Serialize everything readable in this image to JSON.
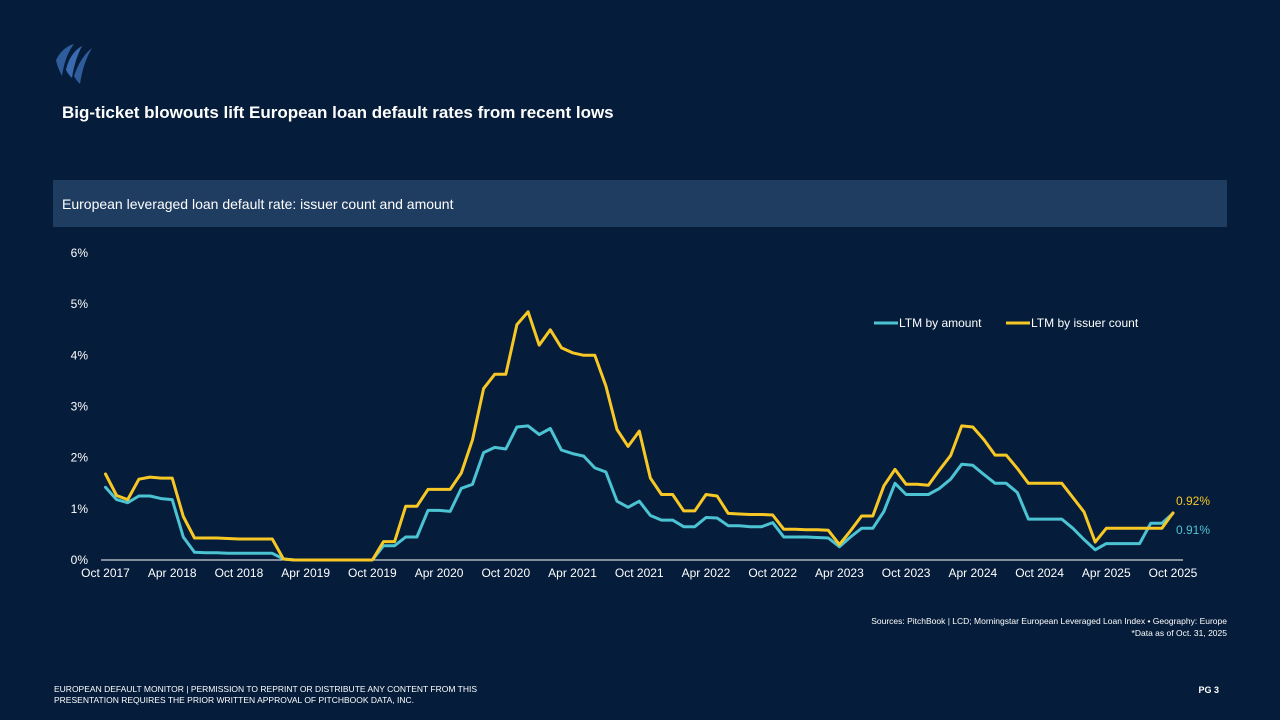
{
  "page": {
    "title": "Big-ticket blowouts lift European loan default rates from recent lows",
    "footer_line1": "EUROPEAN DEFAULT MONITOR | PERMISSION TO REPRINT OR DISTRIBUTE ANY CONTENT  FROM THIS",
    "footer_line2": "PRESENTATION REQUIRES THE PRIOR WRITTEN APPROVAL OF PITCHBOOK DATA, INC.",
    "page_number": "PG 3",
    "source_line1": "Sources: PitchBook | LCD; Morningstar European Leveraged Loan Index • Geography: Europe",
    "source_line2": "*Data as of  Oct. 31, 2025"
  },
  "colors": {
    "background": "#051c3a",
    "subtitle_bar": "#1f3d61",
    "amount": "#4cc3d3",
    "count": "#f7c825",
    "axis": "#ffffff"
  },
  "chart_data": {
    "type": "line",
    "title": "European leveraged loan default rate: issuer count and amount",
    "x_tick_labels": [
      "Oct 2017",
      "Apr 2018",
      "Oct 2018",
      "Apr 2019",
      "Oct 2019",
      "Apr 2020",
      "Oct 2020",
      "Apr 2021",
      "Oct 2021",
      "Apr 2022",
      "Oct 2022",
      "Apr 2023",
      "Oct 2023",
      "Apr 2024",
      "Oct 2024",
      "Apr 2025",
      "Oct 2025"
    ],
    "y_tick_labels": [
      "0%",
      "1%",
      "2%",
      "3%",
      "4%",
      "5%",
      "6%"
    ],
    "ylim": [
      0,
      6
    ],
    "x_start": "Oct 2017",
    "x_end": "Oct 2025",
    "months": 97,
    "legend_position": "top-right",
    "end_labels": {
      "amount": "0.91%",
      "count": "0.92%"
    },
    "series": [
      {
        "name": "LTM by amount",
        "key": "amount",
        "values": [
          1.42,
          1.18,
          1.12,
          1.25,
          1.25,
          1.2,
          1.18,
          0.45,
          0.15,
          0.14,
          0.14,
          0.13,
          0.13,
          0.13,
          0.13,
          0.13,
          0.02,
          0,
          0,
          0,
          0,
          0,
          0,
          0,
          0,
          0.28,
          0.28,
          0.45,
          0.45,
          0.97,
          0.97,
          0.95,
          1.4,
          1.48,
          2.1,
          2.2,
          2.17,
          2.6,
          2.62,
          2.45,
          2.57,
          2.15,
          2.08,
          2.03,
          1.8,
          1.72,
          1.15,
          1.03,
          1.15,
          0.87,
          0.78,
          0.78,
          0.65,
          0.65,
          0.83,
          0.82,
          0.67,
          0.67,
          0.65,
          0.65,
          0.73,
          0.45,
          0.45,
          0.45,
          0.44,
          0.43,
          0.26,
          0.45,
          0.62,
          0.62,
          0.95,
          1.5,
          1.28,
          1.28,
          1.28,
          1.4,
          1.58,
          1.87,
          1.85,
          1.67,
          1.5,
          1.5,
          1.32,
          0.8,
          0.8,
          0.8,
          0.8,
          0.62,
          0.4,
          0.2,
          0.32,
          0.32,
          0.32,
          0.32,
          0.72,
          0.72,
          0.91
        ]
      },
      {
        "name": "LTM by issuer count",
        "key": "count",
        "values": [
          1.68,
          1.26,
          1.18,
          1.58,
          1.62,
          1.6,
          1.6,
          0.85,
          0.43,
          0.43,
          0.43,
          0.42,
          0.41,
          0.41,
          0.41,
          0.41,
          0.02,
          0,
          0,
          0,
          0,
          0,
          0,
          0,
          0,
          0.36,
          0.36,
          1.05,
          1.05,
          1.38,
          1.38,
          1.38,
          1.7,
          2.35,
          3.35,
          3.63,
          3.63,
          4.6,
          4.85,
          4.2,
          4.5,
          4.15,
          4.05,
          4.0,
          4.0,
          3.4,
          2.55,
          2.22,
          2.52,
          1.6,
          1.28,
          1.28,
          0.96,
          0.96,
          1.28,
          1.25,
          0.91,
          0.9,
          0.89,
          0.89,
          0.88,
          0.6,
          0.6,
          0.59,
          0.59,
          0.58,
          0.3,
          0.57,
          0.86,
          0.86,
          1.45,
          1.77,
          1.48,
          1.48,
          1.46,
          1.76,
          2.04,
          2.62,
          2.6,
          2.35,
          2.05,
          2.05,
          1.79,
          1.5,
          1.5,
          1.5,
          1.5,
          1.22,
          0.94,
          0.35,
          0.62,
          0.62,
          0.62,
          0.62,
          0.62,
          0.62,
          0.92
        ]
      }
    ]
  }
}
